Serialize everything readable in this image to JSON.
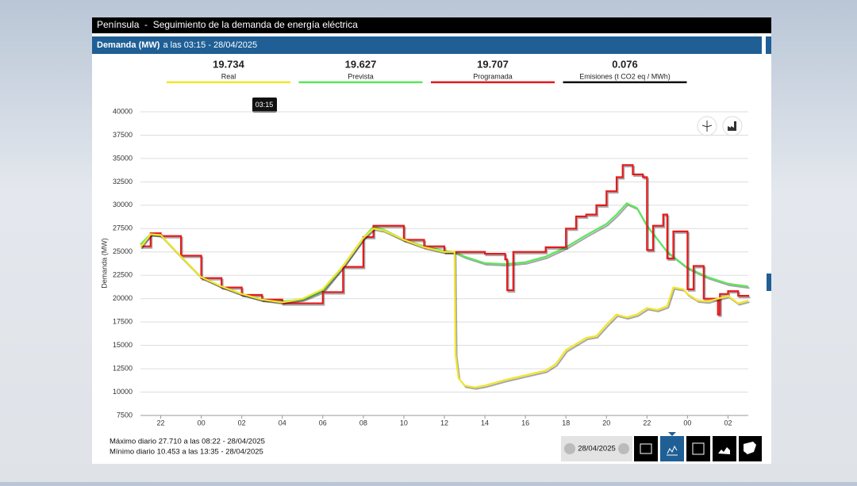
{
  "header": {
    "title": "Península  -  Seguimiento de la demanda de energía eléctrica"
  },
  "subheader": {
    "title": "Demanda (MW)",
    "time": "a las 03:15 - 28/04/2025"
  },
  "summary": [
    {
      "value": "19.734",
      "label": "Real",
      "color": "#f2e62a"
    },
    {
      "value": "19.627",
      "label": "Prevista",
      "color": "#5ce65c"
    },
    {
      "value": "19.707",
      "label": "Programada",
      "color": "#e41a1c"
    },
    {
      "value": "0.076",
      "label": "Emisiones (t CO2 eq / MWh)",
      "color": "#111111"
    }
  ],
  "tooltip": "03:15",
  "chart_data": {
    "type": "line",
    "y_label": "Demanda (MW)",
    "xlim": [
      21,
      51
    ],
    "xticks": [
      {
        "value": 22,
        "label": "22"
      },
      {
        "value": 24,
        "label": "00"
      },
      {
        "value": 26,
        "label": "02"
      },
      {
        "value": 28,
        "label": "04"
      },
      {
        "value": 30,
        "label": "06"
      },
      {
        "value": 32,
        "label": "08"
      },
      {
        "value": 34,
        "label": "10"
      },
      {
        "value": 36,
        "label": "12"
      },
      {
        "value": 38,
        "label": "14"
      },
      {
        "value": 40,
        "label": "16"
      },
      {
        "value": 42,
        "label": "18"
      },
      {
        "value": 44,
        "label": "20"
      },
      {
        "value": 46,
        "label": "22"
      },
      {
        "value": 48,
        "label": "00"
      },
      {
        "value": 50,
        "label": "02"
      }
    ],
    "ylim": [
      7500,
      40000
    ],
    "yticks": [
      7500,
      10000,
      12500,
      15000,
      17500,
      20000,
      22500,
      25000,
      27500,
      30000,
      32500,
      35000,
      37500,
      40000
    ],
    "grid": true,
    "series": [
      {
        "name": "Prevista",
        "color": "#5ce65c",
        "x": [
          21,
          21.5,
          22,
          23,
          24,
          25,
          26,
          27,
          28,
          29,
          30,
          31,
          32,
          32.5,
          33,
          34,
          35,
          36,
          36.5,
          37,
          38,
          39,
          40,
          41,
          42,
          43,
          44,
          44.5,
          45,
          45.5,
          46,
          47,
          48,
          49,
          50,
          51
        ],
        "values": [
          25800,
          26900,
          26800,
          24500,
          22300,
          21300,
          20500,
          19900,
          19700,
          19900,
          20800,
          23500,
          26500,
          27700,
          27400,
          26300,
          25600,
          25100,
          25000,
          24500,
          23800,
          23700,
          23900,
          24500,
          25500,
          26800,
          28000,
          29000,
          30200,
          29700,
          27800,
          25000,
          23300,
          22300,
          21600,
          21300
        ]
      },
      {
        "name": "Programada",
        "color": "#e41a1c",
        "step": "after",
        "x": [
          21,
          21.5,
          22,
          23,
          24,
          25,
          26,
          27,
          28,
          29,
          30,
          31,
          32,
          32.5,
          33,
          34,
          35,
          36,
          36.5,
          37,
          38,
          39,
          39.1,
          39.4,
          40,
          41,
          42,
          42.5,
          43,
          43.5,
          44,
          44.5,
          44.8,
          45.3,
          45.8,
          46,
          46.3,
          46.8,
          47,
          47.3,
          47.8,
          48,
          48.3,
          48.8,
          49.5,
          49.6,
          50,
          50.5,
          51
        ],
        "values": [
          25600,
          27000,
          26700,
          24600,
          22200,
          21200,
          20400,
          19900,
          19500,
          19500,
          20700,
          23400,
          26600,
          27800,
          27800,
          26300,
          25600,
          25000,
          25000,
          25000,
          24800,
          24200,
          20900,
          25000,
          25000,
          25500,
          27500,
          28800,
          29000,
          30000,
          31500,
          33000,
          34300,
          33300,
          33000,
          25200,
          27800,
          29000,
          24300,
          27200,
          27200,
          21000,
          23500,
          20000,
          18300,
          20500,
          20800,
          20300,
          20200
        ]
      },
      {
        "name": "Real",
        "color": "#f2e62a",
        "x": [
          21,
          21.5,
          22,
          23,
          24,
          25,
          26,
          27,
          28,
          29,
          30,
          31,
          32,
          32.5,
          33,
          34,
          35,
          36,
          36.5,
          36.55,
          36.7,
          37,
          37.5,
          38,
          39,
          40,
          41,
          41.5,
          42,
          43,
          43.5,
          44,
          44.5,
          45,
          45.5,
          46,
          46.5,
          47,
          47.3,
          47.8,
          48,
          48.5,
          49,
          50,
          50.5,
          51
        ],
        "values": [
          25500,
          26900,
          26800,
          24500,
          22300,
          21300,
          20500,
          19900,
          19600,
          20000,
          21000,
          23500,
          26500,
          27500,
          27300,
          26300,
          25500,
          25000,
          25000,
          14000,
          11500,
          10700,
          10500,
          10700,
          11300,
          11800,
          12300,
          13000,
          14500,
          15800,
          16000,
          17200,
          18300,
          18000,
          18300,
          19000,
          18800,
          19200,
          21200,
          21000,
          20500,
          19800,
          19700,
          20300,
          19500,
          19800
        ]
      }
    ]
  },
  "footer": {
    "max": "Máximo diario 27.710 a las 08:22 - 28/04/2025",
    "min": "Mínimo diario 10.453 a las 13:35 - 28/04/2025",
    "date": "28/04/2025"
  }
}
